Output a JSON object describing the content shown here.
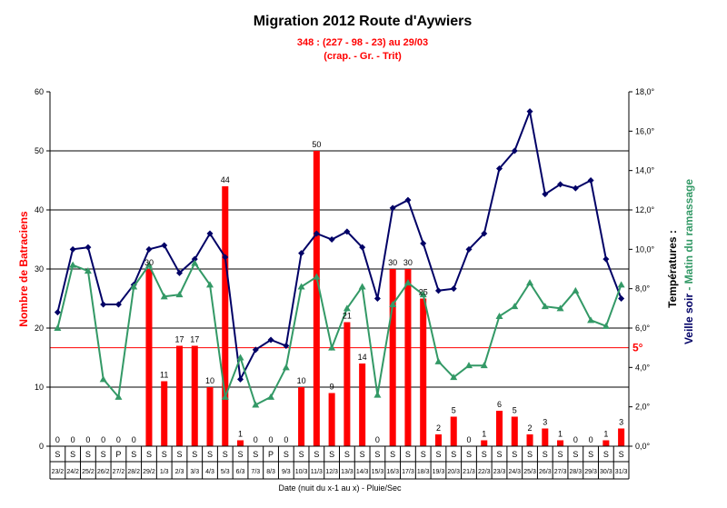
{
  "chart_data": {
    "type": "bar+line",
    "title": "Migration 2012 Route d'Aywiers",
    "subtitle_line1": "348 :  (227 - 98 - 23) au 29/03",
    "subtitle_line2": "(crap. - Gr. - Trit)",
    "xlabel": "Date (nuit du x-1 au x) - Pluie/Sec",
    "ylabel_left": "Nombre de Batraciens",
    "ylabel_right_temp": "Températures :",
    "ylabel_right_evening": "Veille soir",
    "ylabel_right_sep": " - ",
    "ylabel_right_morning": "Matin du ramassage",
    "ylim_left": [
      0,
      60
    ],
    "yticks_left": [
      "0",
      "10",
      "20",
      "30",
      "40",
      "50",
      "60"
    ],
    "ylim_right": [
      0,
      18
    ],
    "yticks_right": [
      "0,0°",
      "2,0°",
      "4,0°",
      "6,0°",
      "8,0°",
      "10,0°",
      "12,0°",
      "14,0°",
      "16,0°",
      "18,0°"
    ],
    "threshold_label": "5°",
    "threshold_value": 5,
    "categories": [
      "23/2",
      "24/2",
      "25/2",
      "26/2",
      "27/2",
      "28/2",
      "29/2",
      "1/3",
      "2/3",
      "3/3",
      "4/3",
      "5/3",
      "6/3",
      "7/3",
      "8/3",
      "9/3",
      "10/3",
      "11/3",
      "12/3",
      "13/3",
      "14/3",
      "15/3",
      "16/3",
      "17/3",
      "18/3",
      "19/3",
      "20/3",
      "21/3",
      "22/3",
      "23/3",
      "24/3",
      "25/3",
      "26/3",
      "27/3",
      "28/3",
      "29/3",
      "30/3",
      "31/3"
    ],
    "weather": [
      "S",
      "S",
      "S",
      "S",
      "P",
      "S",
      "S",
      "S",
      "S",
      "S",
      "S",
      "S",
      "S",
      "S",
      "P",
      "S",
      "S",
      "S",
      "S",
      "S",
      "S",
      "S",
      "S",
      "S",
      "S",
      "S",
      "S",
      "S",
      "S",
      "S",
      "S",
      "S",
      "S",
      "S",
      "S",
      "S",
      "S",
      "S"
    ],
    "series": [
      {
        "name": "Batraciens",
        "type": "bar",
        "axis": "left",
        "color": "#ff0000",
        "values": [
          0,
          0,
          0,
          0,
          0,
          0,
          30,
          11,
          17,
          17,
          10,
          44,
          1,
          0,
          0,
          0,
          10,
          50,
          9,
          21,
          14,
          0,
          30,
          30,
          25,
          2,
          5,
          0,
          1,
          6,
          5,
          2,
          3,
          1,
          0,
          0,
          1,
          3
        ]
      },
      {
        "name": "Veille soir",
        "type": "line",
        "axis": "right",
        "color": "#000066",
        "values": [
          6.8,
          10,
          10.1,
          7.2,
          7.2,
          8.2,
          10,
          10.2,
          8.8,
          9.5,
          10.8,
          9.6,
          3.4,
          4.9,
          5.4,
          5.1,
          9.8,
          10.8,
          10.5,
          10.9,
          10.1,
          7.5,
          12.1,
          12.5,
          10.3,
          7.9,
          8,
          10,
          10.8,
          14.1,
          15,
          17,
          12.8,
          13.3,
          13.1,
          13.5,
          9.5,
          7.5
        ]
      },
      {
        "name": "Matin du ramassage",
        "type": "line",
        "axis": "right",
        "color": "#339966",
        "values": [
          6,
          9.2,
          8.9,
          3.4,
          2.5,
          8.1,
          9.2,
          7.6,
          7.7,
          9.3,
          8.2,
          2.5,
          4.5,
          2.1,
          2.5,
          4,
          8.1,
          8.6,
          5,
          7,
          8.1,
          2.6,
          7.2,
          8.3,
          7.7,
          4.3,
          3.5,
          4.1,
          4.1,
          6.6,
          7.1,
          8.3,
          7.1,
          7,
          7.9,
          6.4,
          6.1,
          8.2
        ]
      }
    ]
  }
}
